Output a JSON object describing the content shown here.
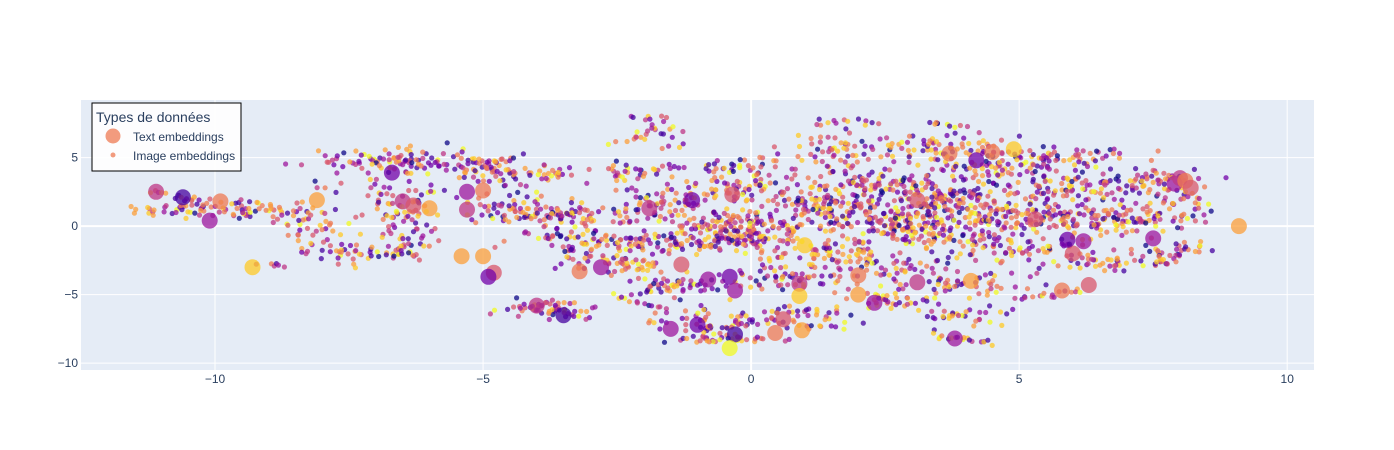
{
  "chart_data": {
    "type": "scatter",
    "title": "",
    "xlabel": "",
    "ylabel": "",
    "xlim": [
      -12.5,
      10.5
    ],
    "ylim": [
      -10.5,
      9.2
    ],
    "x_ticks": [
      -10,
      -5,
      0,
      5,
      10
    ],
    "y_ticks": [
      -10,
      -5,
      0,
      5
    ],
    "x_tick_labels": [
      "−10",
      "−5",
      "0",
      "5",
      "10"
    ],
    "y_tick_labels": [
      "−10",
      "−5",
      "0",
      "5"
    ],
    "grid": true,
    "legend": {
      "title": "Types de données",
      "placement": "top-left",
      "entries": [
        "Text embeddings",
        "Image embeddings"
      ]
    },
    "colorscale": "plasma",
    "colorscale_colors": [
      "#0d0887",
      "#46039f",
      "#7201a8",
      "#9c179e",
      "#bd3786",
      "#d8576b",
      "#ed7953",
      "#fb9f3a",
      "#fdca26",
      "#f0f921"
    ],
    "background_color": "#e5ecf6",
    "legend_marker_color": "#ed7953",
    "series": [
      {
        "name": "Text embeddings",
        "marker": "large-circle",
        "points": [
          {
            "x": -11.1,
            "y": 2.5,
            "c": 0.45
          },
          {
            "x": -10.6,
            "y": 2.1,
            "c": 0.15
          },
          {
            "x": -10.1,
            "y": 0.4,
            "c": 0.35
          },
          {
            "x": -9.9,
            "y": 1.8,
            "c": 0.65
          },
          {
            "x": -9.3,
            "y": -3.0,
            "c": 0.9
          },
          {
            "x": -8.1,
            "y": 1.9,
            "c": 0.75
          },
          {
            "x": -6.7,
            "y": 3.9,
            "c": 0.2
          },
          {
            "x": -6.5,
            "y": 1.8,
            "c": 0.4
          },
          {
            "x": -6.3,
            "y": 1.5,
            "c": 0.5
          },
          {
            "x": -6.0,
            "y": 1.3,
            "c": 0.8
          },
          {
            "x": -5.3,
            "y": 2.5,
            "c": 0.35
          },
          {
            "x": -5.3,
            "y": 1.2,
            "c": 0.45
          },
          {
            "x": -5.0,
            "y": 2.6,
            "c": 0.7
          },
          {
            "x": -5.4,
            "y": -2.2,
            "c": 0.75
          },
          {
            "x": -5.0,
            "y": -2.2,
            "c": 0.8
          },
          {
            "x": -4.8,
            "y": -3.4,
            "c": 0.55
          },
          {
            "x": -4.9,
            "y": -3.7,
            "c": 0.2
          },
          {
            "x": -4.0,
            "y": -5.8,
            "c": 0.4
          },
          {
            "x": -3.5,
            "y": -6.5,
            "c": 0.15
          },
          {
            "x": -3.2,
            "y": -3.3,
            "c": 0.7
          },
          {
            "x": -2.8,
            "y": -3.0,
            "c": 0.3
          },
          {
            "x": -1.9,
            "y": 1.3,
            "c": 0.45
          },
          {
            "x": -1.3,
            "y": -2.8,
            "c": 0.55
          },
          {
            "x": -1.5,
            "y": -7.5,
            "c": 0.35
          },
          {
            "x": -1.1,
            "y": 1.9,
            "c": 0.25
          },
          {
            "x": -1.0,
            "y": -7.2,
            "c": 0.2
          },
          {
            "x": -0.8,
            "y": -3.9,
            "c": 0.3
          },
          {
            "x": -0.4,
            "y": -3.7,
            "c": 0.25
          },
          {
            "x": -0.35,
            "y": 2.3,
            "c": 0.6
          },
          {
            "x": -0.3,
            "y": -7.9,
            "c": 0.1
          },
          {
            "x": -0.3,
            "y": -4.7,
            "c": 0.35
          },
          {
            "x": -0.4,
            "y": -8.9,
            "c": 0.95
          },
          {
            "x": 0.45,
            "y": -7.8,
            "c": 0.7
          },
          {
            "x": 0.6,
            "y": -6.8,
            "c": 0.6
          },
          {
            "x": 0.9,
            "y": -4.2,
            "c": 0.45
          },
          {
            "x": 0.9,
            "y": -5.1,
            "c": 0.85
          },
          {
            "x": 0.95,
            "y": -7.6,
            "c": 0.75
          },
          {
            "x": 1.0,
            "y": -1.4,
            "c": 0.9
          },
          {
            "x": 2.0,
            "y": -5.0,
            "c": 0.75
          },
          {
            "x": 2.0,
            "y": -3.6,
            "c": 0.65
          },
          {
            "x": 2.3,
            "y": -5.6,
            "c": 0.35
          },
          {
            "x": 3.1,
            "y": 1.9,
            "c": 0.5
          },
          {
            "x": 3.1,
            "y": -4.1,
            "c": 0.4
          },
          {
            "x": 3.7,
            "y": 5.3,
            "c": 0.7
          },
          {
            "x": 3.8,
            "y": -8.2,
            "c": 0.3
          },
          {
            "x": 4.1,
            "y": -4.0,
            "c": 0.75
          },
          {
            "x": 4.2,
            "y": 4.8,
            "c": 0.25
          },
          {
            "x": 4.5,
            "y": 5.4,
            "c": 0.65
          },
          {
            "x": 4.9,
            "y": 5.6,
            "c": 0.85
          },
          {
            "x": 5.3,
            "y": 0.5,
            "c": 0.5
          },
          {
            "x": 5.8,
            "y": -4.7,
            "c": 0.7
          },
          {
            "x": 6.0,
            "y": -2.0,
            "c": 0.55
          },
          {
            "x": 5.9,
            "y": -1.0,
            "c": 0.2
          },
          {
            "x": 6.2,
            "y": -1.1,
            "c": 0.3
          },
          {
            "x": 6.3,
            "y": -4.3,
            "c": 0.55
          },
          {
            "x": 7.5,
            "y": -0.9,
            "c": 0.3
          },
          {
            "x": 7.9,
            "y": 3.1,
            "c": 0.3
          },
          {
            "x": 8.0,
            "y": 3.5,
            "c": 0.4
          },
          {
            "x": 8.1,
            "y": 3.3,
            "c": 0.7
          },
          {
            "x": 8.2,
            "y": 2.8,
            "c": 0.55
          },
          {
            "x": 9.1,
            "y": 0.0,
            "c": 0.8
          }
        ]
      },
      {
        "name": "Image embeddings",
        "marker": "small-circle",
        "clusters": [
          {
            "x": -10.0,
            "y": 1.3,
            "sx": 0.9,
            "sy": 0.5,
            "n": 70
          },
          {
            "x": -8.3,
            "y": 0.5,
            "sx": 0.5,
            "sy": 1.2,
            "n": 45
          },
          {
            "x": -7.2,
            "y": -1.8,
            "sx": 0.9,
            "sy": 0.6,
            "n": 55
          },
          {
            "x": -6.6,
            "y": 4.8,
            "sx": 0.9,
            "sy": 0.5,
            "n": 90
          },
          {
            "x": -6.5,
            "y": 1.6,
            "sx": 0.5,
            "sy": 1.3,
            "n": 60
          },
          {
            "x": -6.4,
            "y": -0.7,
            "sx": 0.4,
            "sy": 0.8,
            "n": 30
          },
          {
            "x": -5.2,
            "y": 4.4,
            "sx": 0.6,
            "sy": 0.6,
            "n": 45
          },
          {
            "x": -4.2,
            "y": 3.8,
            "sx": 0.9,
            "sy": 0.4,
            "n": 50
          },
          {
            "x": -4.7,
            "y": 1.5,
            "sx": 0.6,
            "sy": 0.9,
            "n": 40
          },
          {
            "x": -3.5,
            "y": 0.8,
            "sx": 0.8,
            "sy": 0.6,
            "n": 90
          },
          {
            "x": -3.2,
            "y": -1.0,
            "sx": 0.8,
            "sy": 0.6,
            "n": 70
          },
          {
            "x": -2.5,
            "y": -2.8,
            "sx": 0.7,
            "sy": 0.5,
            "n": 55
          },
          {
            "x": -3.8,
            "y": -5.9,
            "sx": 0.6,
            "sy": 0.5,
            "n": 45
          },
          {
            "x": -2.2,
            "y": 3.9,
            "sx": 0.8,
            "sy": 0.6,
            "n": 40
          },
          {
            "x": -1.8,
            "y": 6.6,
            "sx": 0.5,
            "sy": 0.6,
            "n": 25
          },
          {
            "x": -1.6,
            "y": 1.6,
            "sx": 0.7,
            "sy": 0.8,
            "n": 65
          },
          {
            "x": -1.5,
            "y": -1.2,
            "sx": 0.7,
            "sy": 0.5,
            "n": 55
          },
          {
            "x": -1.4,
            "y": -4.4,
            "sx": 0.6,
            "sy": 0.6,
            "n": 50
          },
          {
            "x": -0.8,
            "y": -6.9,
            "sx": 0.6,
            "sy": 0.6,
            "n": 45
          },
          {
            "x": -0.5,
            "y": -8.2,
            "sx": 0.6,
            "sy": 0.2,
            "n": 35
          },
          {
            "x": -0.3,
            "y": -1.0,
            "sx": 0.8,
            "sy": 0.5,
            "n": 80
          },
          {
            "x": -0.2,
            "y": 0.0,
            "sx": 0.9,
            "sy": 0.6,
            "n": 90
          },
          {
            "x": -0.2,
            "y": 2.7,
            "sx": 0.7,
            "sy": 0.7,
            "n": 55
          },
          {
            "x": -0.2,
            "y": 4.3,
            "sx": 0.6,
            "sy": 0.5,
            "n": 35
          },
          {
            "x": 0.6,
            "y": -3.8,
            "sx": 0.7,
            "sy": 0.5,
            "n": 55
          },
          {
            "x": 0.9,
            "y": -6.7,
            "sx": 0.6,
            "sy": 0.7,
            "n": 50
          },
          {
            "x": 1.2,
            "y": 1.5,
            "sx": 0.8,
            "sy": 0.8,
            "n": 85
          },
          {
            "x": 1.4,
            "y": -1.9,
            "sx": 0.8,
            "sy": 0.6,
            "n": 70
          },
          {
            "x": 1.5,
            "y": 5.5,
            "sx": 0.7,
            "sy": 1.0,
            "n": 60
          },
          {
            "x": 2.3,
            "y": 3.0,
            "sx": 0.8,
            "sy": 0.8,
            "n": 85
          },
          {
            "x": 2.6,
            "y": 0.5,
            "sx": 0.9,
            "sy": 0.7,
            "n": 110
          },
          {
            "x": 2.4,
            "y": -2.8,
            "sx": 0.8,
            "sy": 0.7,
            "n": 60
          },
          {
            "x": 2.6,
            "y": -5.5,
            "sx": 0.6,
            "sy": 0.5,
            "n": 35
          },
          {
            "x": 3.5,
            "y": 5.5,
            "sx": 0.9,
            "sy": 0.7,
            "n": 80
          },
          {
            "x": 3.7,
            "y": 2.0,
            "sx": 0.9,
            "sy": 0.9,
            "n": 110
          },
          {
            "x": 3.6,
            "y": -0.7,
            "sx": 0.9,
            "sy": 0.6,
            "n": 90
          },
          {
            "x": 3.8,
            "y": -4.2,
            "sx": 0.8,
            "sy": 0.6,
            "n": 55
          },
          {
            "x": 4.0,
            "y": -6.6,
            "sx": 0.6,
            "sy": 0.4,
            "n": 30
          },
          {
            "x": 4.6,
            "y": 4.0,
            "sx": 0.9,
            "sy": 0.8,
            "n": 80
          },
          {
            "x": 4.8,
            "y": 0.8,
            "sx": 0.9,
            "sy": 0.7,
            "n": 100
          },
          {
            "x": 5.2,
            "y": -1.8,
            "sx": 0.8,
            "sy": 0.6,
            "n": 55
          },
          {
            "x": 5.8,
            "y": 5.0,
            "sx": 0.8,
            "sy": 0.5,
            "n": 55
          },
          {
            "x": 6.1,
            "y": 2.6,
            "sx": 0.9,
            "sy": 0.8,
            "n": 90
          },
          {
            "x": 6.2,
            "y": 0.2,
            "sx": 0.9,
            "sy": 0.6,
            "n": 70
          },
          {
            "x": 6.6,
            "y": -2.6,
            "sx": 0.8,
            "sy": 0.5,
            "n": 40
          },
          {
            "x": 7.6,
            "y": 3.4,
            "sx": 0.6,
            "sy": 0.7,
            "n": 45
          },
          {
            "x": 7.2,
            "y": 0.5,
            "sx": 0.7,
            "sy": 0.6,
            "n": 45
          },
          {
            "x": 8.0,
            "y": 1.8,
            "sx": 0.4,
            "sy": 1.0,
            "n": 35
          },
          {
            "x": 7.8,
            "y": -1.8,
            "sx": 0.6,
            "sy": 0.4,
            "n": 25
          }
        ],
        "trails": [
          {
            "from": [
              -11.2,
              2.6
            ],
            "to": [
              -10.3,
              1.8
            ],
            "n": 12
          },
          {
            "from": [
              -4.2,
              -5.8
            ],
            "to": [
              -3.0,
              -6.8
            ],
            "n": 14
          },
          {
            "from": [
              -2.6,
              -5.0
            ],
            "to": [
              -1.5,
              -6.2
            ],
            "n": 14
          },
          {
            "from": [
              -2.2,
              7.9
            ],
            "to": [
              -1.6,
              7.8
            ],
            "n": 8
          },
          {
            "from": [
              -0.9,
              -7.4
            ],
            "to": [
              0.3,
              -6.9
            ],
            "n": 12
          },
          {
            "from": [
              1.2,
              7.6
            ],
            "to": [
              2.4,
              7.6
            ],
            "n": 12
          },
          {
            "from": [
              3.4,
              -8.0
            ],
            "to": [
              4.5,
              -8.5
            ],
            "n": 18
          },
          {
            "from": [
              5.0,
              -5.3
            ],
            "to": [
              6.2,
              -4.6
            ],
            "n": 16
          },
          {
            "from": [
              7.5,
              -2.9
            ],
            "to": [
              8.4,
              -1.5
            ],
            "n": 14
          },
          {
            "from": [
              3.3,
              7.6
            ],
            "to": [
              3.8,
              7.3
            ],
            "n": 8
          },
          {
            "from": [
              -9.6,
              1.1
            ],
            "to": [
              -8.9,
              1.2
            ],
            "n": 10
          },
          {
            "from": [
              -9.1,
              -2.6
            ],
            "to": [
              -8.7,
              -2.9
            ],
            "n": 6
          },
          {
            "from": [
              -0.6,
              0.8
            ],
            "to": [
              0.8,
              -0.2
            ],
            "n": 18
          }
        ]
      }
    ]
  }
}
